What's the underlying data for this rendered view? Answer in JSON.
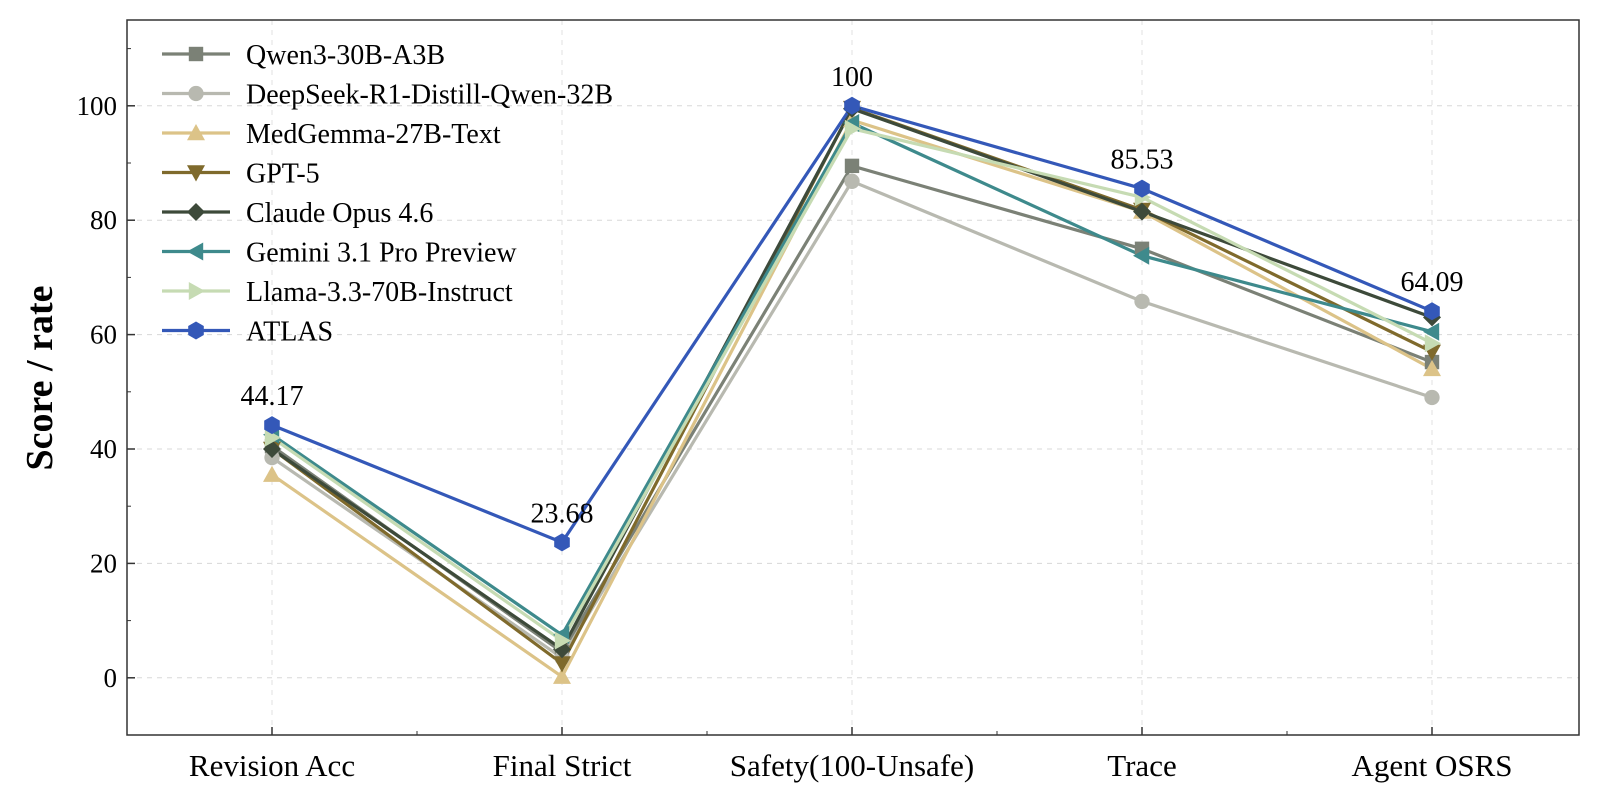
{
  "chart_data": {
    "type": "line",
    "title": "",
    "xlabel": "",
    "ylabel": "Score / rate",
    "categories": [
      "Revision Acc",
      "Final Strict",
      "Safety(100-Unsafe)",
      "Trace",
      "Agent OSRS"
    ],
    "ylim": [
      -10,
      115
    ],
    "yticks": [
      0,
      20,
      40,
      60,
      80,
      100
    ],
    "grid": true,
    "legend_position": "top-left",
    "series": [
      {
        "name": "Qwen3-30B-A3B",
        "color": "#7b8176",
        "marker": "square",
        "values": [
          40.5,
          4.5,
          89.5,
          75.0,
          55.2
        ]
      },
      {
        "name": "DeepSeek-R1-Distill-Qwen-32B",
        "color": "#b8b9b0",
        "marker": "circle",
        "values": [
          38.5,
          3.5,
          86.8,
          65.8,
          49.0
        ]
      },
      {
        "name": "MedGemma-27B-Text",
        "color": "#dcc388",
        "marker": "triangle-up",
        "values": [
          35.5,
          0.2,
          97.5,
          81.5,
          54.0
        ]
      },
      {
        "name": "GPT-5",
        "color": "#7f6a2c",
        "marker": "triangle-down",
        "values": [
          40.0,
          2.5,
          99.6,
          81.8,
          57.0
        ]
      },
      {
        "name": "Claude Opus 4.6",
        "color": "#3d4a3a",
        "marker": "diamond",
        "values": [
          40.0,
          5.0,
          99.5,
          81.5,
          63.0
        ]
      },
      {
        "name": "Gemini 3.1 Pro Preview",
        "color": "#3e8a8c",
        "marker": "triangle-left",
        "values": [
          42.5,
          7.5,
          97.0,
          73.8,
          60.5
        ]
      },
      {
        "name": "Llama-3.3-70B-Instruct",
        "color": "#c6dbb3",
        "marker": "triangle-right",
        "values": [
          42.0,
          6.5,
          96.0,
          84.0,
          58.5
        ]
      },
      {
        "name": "ATLAS",
        "color": "#3458b8",
        "marker": "hexagon",
        "values": [
          44.17,
          23.68,
          100,
          85.53,
          64.09
        ]
      }
    ],
    "annotations": [
      {
        "series": "ATLAS",
        "category": "Revision Acc",
        "text": "44.17"
      },
      {
        "series": "ATLAS",
        "category": "Final Strict",
        "text": "23.68"
      },
      {
        "series": "ATLAS",
        "category": "Safety(100-Unsafe)",
        "text": "100"
      },
      {
        "series": "ATLAS",
        "category": "Trace",
        "text": "85.53"
      },
      {
        "series": "ATLAS",
        "category": "Agent OSRS",
        "text": "64.09"
      }
    ]
  }
}
